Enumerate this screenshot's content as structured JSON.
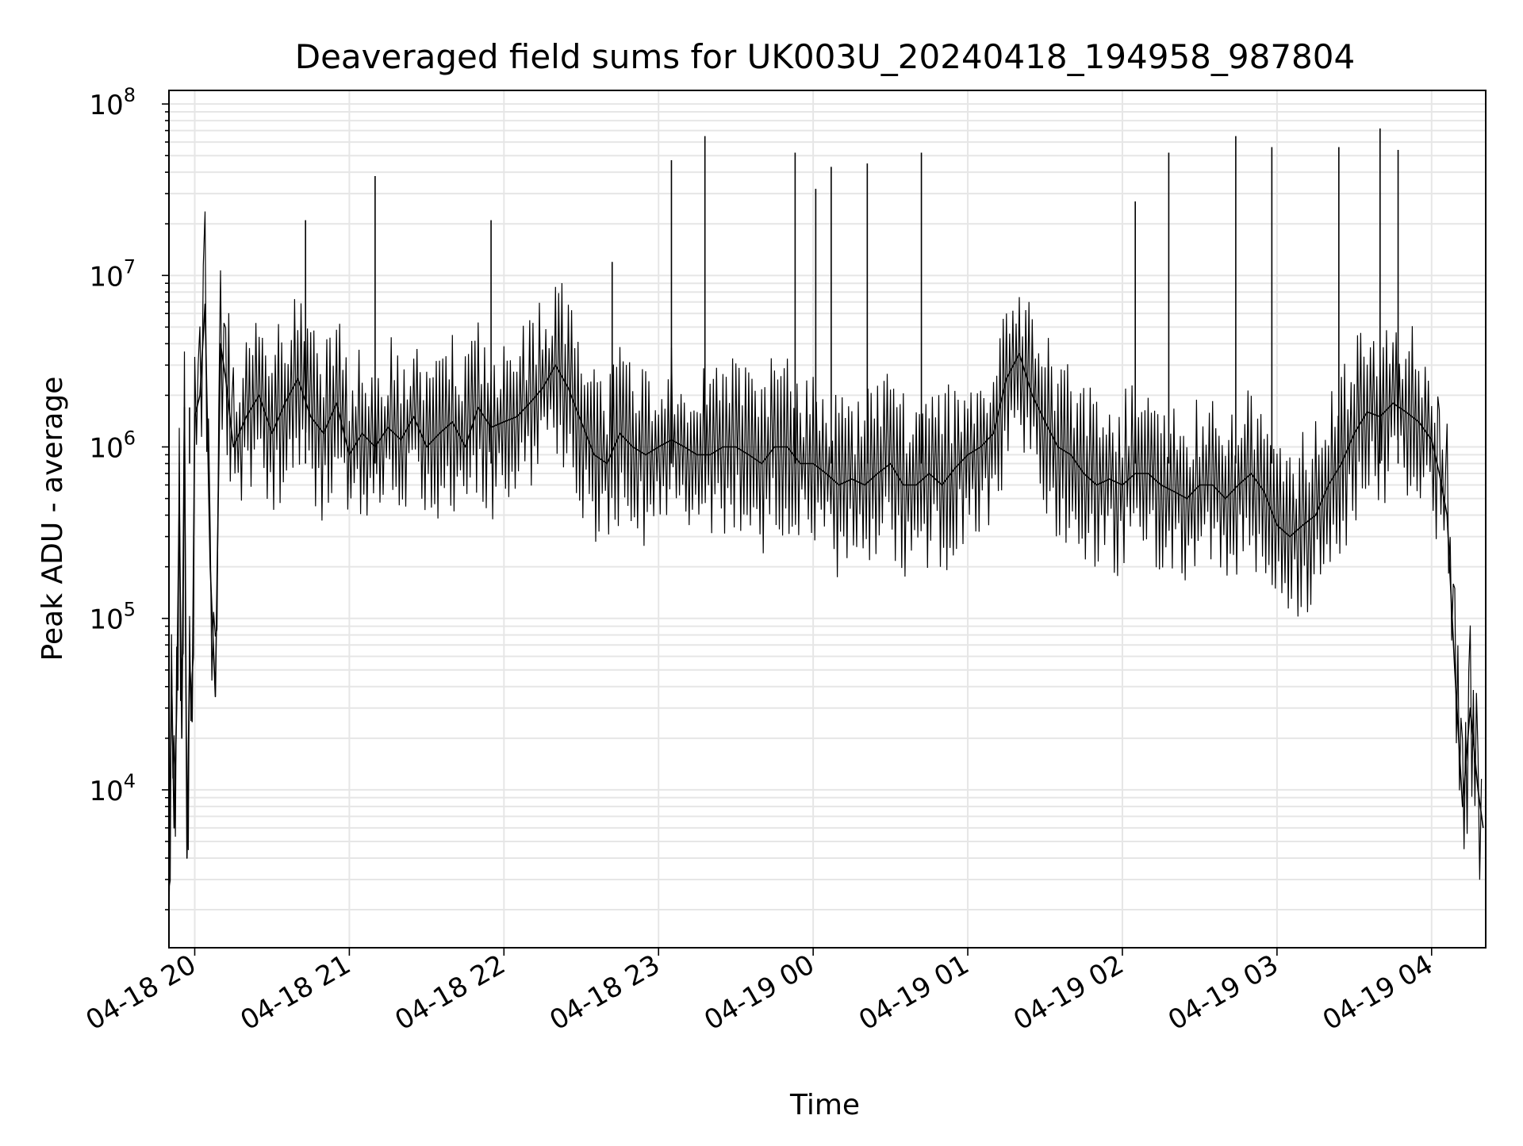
{
  "chart_data": {
    "type": "line",
    "title": "Deaveraged field sums for UK003U_20240418_194958_987804",
    "xlabel": "Time",
    "ylabel": "Peak ADU - average",
    "yscale": "log",
    "ylim": [
      1200,
      120000000
    ],
    "xlim": [
      "04-18 19:50",
      "04-19 04:21"
    ],
    "xticks": [
      "04-18 20",
      "04-18 21",
      "04-18 22",
      "04-18 23",
      "04-19 00",
      "04-19 01",
      "04-19 02",
      "04-19 03",
      "04-19 04"
    ],
    "xtick_rotation": "30 degrees",
    "yticks": [
      {
        "base": "10",
        "exp": "4"
      },
      {
        "base": "10",
        "exp": "5"
      },
      {
        "base": "10",
        "exp": "6"
      },
      {
        "base": "10",
        "exp": "7"
      },
      {
        "base": "10",
        "exp": "8"
      }
    ],
    "grid": "on (major and minor)",
    "line_color": "#000000",
    "grid_color": "#e6e6e6",
    "series": [
      {
        "x": [
          "04-18 19:50",
          "04-18 19:51",
          "04-18 19:52",
          "04-18 19:53",
          "04-18 19:54",
          "04-18 19:55",
          "04-18 19:56",
          "04-18 19:57",
          "04-18 19:58",
          "04-18 19:59",
          "04-18 20:00",
          "04-18 20:02",
          "04-18 20:04",
          "04-18 20:06",
          "04-18 20:08",
          "04-18 20:10",
          "04-18 20:12",
          "04-18 20:15",
          "04-18 20:20",
          "04-18 20:25",
          "04-18 20:30",
          "04-18 20:35",
          "04-18 20:40",
          "04-18 20:45",
          "04-18 20:50",
          "04-18 20:55",
          "04-18 21:00",
          "04-18 21:05",
          "04-18 21:10",
          "04-18 21:15",
          "04-18 21:20",
          "04-18 21:25",
          "04-18 21:30",
          "04-18 21:35",
          "04-18 21:40",
          "04-18 21:45",
          "04-18 21:50",
          "04-18 21:55",
          "04-18 22:00",
          "04-18 22:05",
          "04-18 22:10",
          "04-18 22:15",
          "04-18 22:20",
          "04-18 22:25",
          "04-18 22:30",
          "04-18 22:35",
          "04-18 22:40",
          "04-18 22:45",
          "04-18 22:50",
          "04-18 22:55",
          "04-18 23:00",
          "04-18 23:05",
          "04-18 23:10",
          "04-18 23:15",
          "04-18 23:20",
          "04-18 23:25",
          "04-18 23:30",
          "04-18 23:35",
          "04-18 23:40",
          "04-18 23:45",
          "04-18 23:50",
          "04-18 23:55",
          "04-19 00:00",
          "04-19 00:05",
          "04-19 00:10",
          "04-19 00:15",
          "04-19 00:20",
          "04-19 00:25",
          "04-19 00:30",
          "04-19 00:35",
          "04-19 00:40",
          "04-19 00:45",
          "04-19 00:50",
          "04-19 00:55",
          "04-19 01:00",
          "04-19 01:05",
          "04-19 01:10",
          "04-19 01:15",
          "04-19 01:20",
          "04-19 01:25",
          "04-19 01:30",
          "04-19 01:35",
          "04-19 01:40",
          "04-19 01:45",
          "04-19 01:50",
          "04-19 01:55",
          "04-19 02:00",
          "04-19 02:05",
          "04-19 02:10",
          "04-19 02:15",
          "04-19 02:20",
          "04-19 02:25",
          "04-19 02:30",
          "04-19 02:35",
          "04-19 02:40",
          "04-19 02:45",
          "04-19 02:50",
          "04-19 02:55",
          "04-19 03:00",
          "04-19 03:05",
          "04-19 03:10",
          "04-19 03:15",
          "04-19 03:20",
          "04-19 03:25",
          "04-19 03:30",
          "04-19 03:35",
          "04-19 03:40",
          "04-19 03:45",
          "04-19 03:50",
          "04-19 03:55",
          "04-19 04:00",
          "04-19 04:03",
          "04-19 04:06",
          "04-19 04:09",
          "04-19 04:12",
          "04-19 04:15",
          "04-19 04:18",
          "04-19 04:20"
        ],
        "y": [
          1900,
          50000,
          6000,
          30000,
          500000,
          20000,
          1700000,
          4000,
          60000,
          25000,
          1500000,
          2000000,
          6800000,
          200000,
          35000,
          4000000,
          2500000,
          1000000,
          1500000,
          2000000,
          1200000,
          1800000,
          2500000,
          1500000,
          1200000,
          1800000,
          900000,
          1200000,
          1000000,
          1300000,
          1100000,
          1500000,
          1000000,
          1200000,
          1400000,
          1000000,
          1700000,
          1300000,
          1400000,
          1500000,
          1800000,
          2200000,
          3000000,
          2200000,
          1400000,
          900000,
          800000,
          1200000,
          1000000,
          900000,
          1000000,
          1100000,
          1000000,
          900000,
          900000,
          1000000,
          1000000,
          900000,
          800000,
          1000000,
          1000000,
          800000,
          800000,
          700000,
          600000,
          650000,
          600000,
          700000,
          800000,
          600000,
          600000,
          700000,
          600000,
          750000,
          900000,
          1000000,
          1200000,
          2500000,
          3500000,
          2000000,
          1400000,
          1000000,
          900000,
          700000,
          600000,
          650000,
          600000,
          700000,
          700000,
          600000,
          550000,
          500000,
          600000,
          600000,
          500000,
          600000,
          700000,
          550000,
          350000,
          300000,
          350000,
          400000,
          600000,
          800000,
          1200000,
          1600000,
          1500000,
          1800000,
          1600000,
          1400000,
          1100000,
          700000,
          400000,
          50000,
          8000,
          30000,
          10000,
          6000
        ]
      }
    ],
    "spikes": [
      {
        "x": "04-18 19:58",
        "y": 1700000
      },
      {
        "x": "04-18 20:43",
        "y": 21000000
      },
      {
        "x": "04-18 21:10",
        "y": 38000000
      },
      {
        "x": "04-18 21:55",
        "y": 21000000
      },
      {
        "x": "04-18 22:42",
        "y": 12000000
      },
      {
        "x": "04-18 23:05",
        "y": 47000000
      },
      {
        "x": "04-18 23:18",
        "y": 65000000
      },
      {
        "x": "04-18 23:53",
        "y": 52000000
      },
      {
        "x": "04-19 00:01",
        "y": 32000000
      },
      {
        "x": "04-19 00:07",
        "y": 43000000
      },
      {
        "x": "04-19 00:21",
        "y": 45000000
      },
      {
        "x": "04-19 00:42",
        "y": 52000000
      },
      {
        "x": "04-19 02:05",
        "y": 27000000
      },
      {
        "x": "04-19 02:18",
        "y": 52000000
      },
      {
        "x": "04-19 02:44",
        "y": 65000000
      },
      {
        "x": "04-19 02:58",
        "y": 56000000
      },
      {
        "x": "04-19 03:24",
        "y": 56000000
      },
      {
        "x": "04-19 03:40",
        "y": 72000000
      },
      {
        "x": "04-19 03:47",
        "y": 54000000
      }
    ]
  }
}
